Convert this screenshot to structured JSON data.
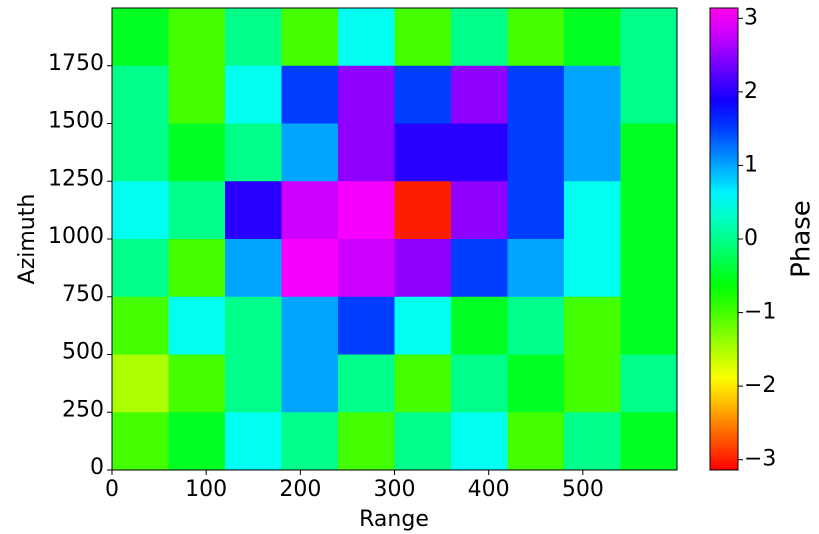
{
  "chart_data": {
    "type": "heatmap",
    "x_label": "Range",
    "y_label": "Azimuth",
    "colorbar_label": "Phase",
    "colormap": "hsv",
    "xlim": [
      0,
      600
    ],
    "ylim": [
      0,
      2000
    ],
    "xticks": [
      0,
      100,
      200,
      300,
      400,
      500
    ],
    "yticks": [
      0,
      250,
      500,
      750,
      1000,
      1250,
      1500,
      1750
    ],
    "clim": [
      -3.14,
      3.14
    ],
    "cticks": [
      {
        "value": -3,
        "label": "−3"
      },
      {
        "value": -2,
        "label": "−2"
      },
      {
        "value": -1,
        "label": "−1"
      },
      0,
      1,
      2,
      3
    ],
    "z": [
      [
        -0.5,
        -1,
        0,
        -1,
        0.5,
        -1,
        0,
        -1,
        -0.5,
        0
      ],
      [
        0,
        -1,
        0.5,
        1.5,
        2.5,
        1.5,
        2.5,
        1.5,
        1,
        0
      ],
      [
        0,
        -0.5,
        0,
        1,
        2.5,
        2,
        2,
        1.5,
        1,
        -0.5
      ],
      [
        0.5,
        0,
        2,
        2.8,
        3,
        -3,
        2.5,
        1.5,
        0.5,
        -0.5
      ],
      [
        0,
        -1,
        1,
        3,
        2.8,
        2.5,
        1.5,
        1,
        0.5,
        -0.5
      ],
      [
        -1,
        0.5,
        0,
        1,
        1.5,
        0.5,
        -0.5,
        0,
        -1,
        -0.5
      ],
      [
        -1.5,
        -1,
        0,
        1,
        0,
        -1,
        0,
        -0.5,
        -1,
        0
      ],
      [
        -1,
        -0.5,
        0.5,
        0,
        -1,
        0,
        0.5,
        -1,
        0,
        -0.5
      ]
    ]
  }
}
